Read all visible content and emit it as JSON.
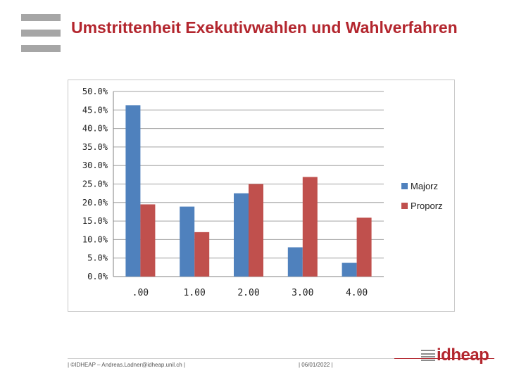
{
  "title": "Umstrittenheit Exekutivwahlen und Wahlverfahren",
  "colors": {
    "accent": "#b3262e",
    "majorz": "#4f81bd",
    "proporz": "#c0504d",
    "grid": "#a0a0a0"
  },
  "chart_data": {
    "type": "bar",
    "title": "",
    "xlabel": "",
    "ylabel": "",
    "categories": [
      ".00",
      "1.00",
      "2.00",
      "3.00",
      "4.00"
    ],
    "series": [
      {
        "name": "Majorz",
        "values": [
          46.3,
          18.9,
          22.5,
          7.9,
          3.7
        ]
      },
      {
        "name": "Proporz",
        "values": [
          19.5,
          12.0,
          25.0,
          26.9,
          15.9
        ]
      }
    ],
    "ylim": [
      0,
      50
    ],
    "y_ticks": [
      "0.0%",
      "5.0%",
      "10.0%",
      "15.0%",
      "20.0%",
      "25.0%",
      "30.0%",
      "35.0%",
      "40.0%",
      "45.0%",
      "50.0%"
    ],
    "grid": true,
    "legend": "right"
  },
  "footer": {
    "left": "| ©IDHEAP – Andreas.Ladner@idheap.unil.ch |",
    "date": "| 06/01/2022 |",
    "logo": "idheap"
  }
}
